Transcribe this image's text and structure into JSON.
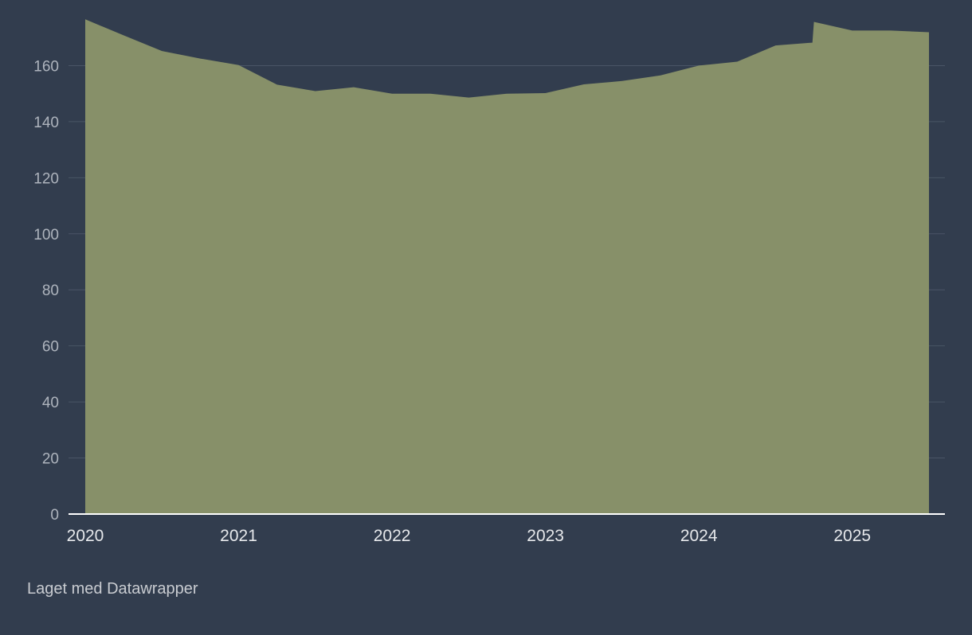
{
  "chart_data": {
    "type": "area",
    "title": "",
    "xlabel": "",
    "ylabel": "",
    "x_ticks": [
      "2020",
      "2021",
      "2022",
      "2023",
      "2024",
      "2025"
    ],
    "y_ticks": [
      0,
      20,
      40,
      60,
      80,
      100,
      120,
      140,
      160
    ],
    "xlim": [
      2020.0,
      2025.5
    ],
    "ylim": [
      0,
      180
    ],
    "grid": true,
    "legend": "none",
    "series": [
      {
        "color": "#879069",
        "points": [
          {
            "x": 2020.0,
            "y": 176.5
          },
          {
            "x": 2020.25,
            "y": 170.8
          },
          {
            "x": 2020.5,
            "y": 165.2
          },
          {
            "x": 2020.75,
            "y": 162.5
          },
          {
            "x": 2021.0,
            "y": 160.2
          },
          {
            "x": 2021.25,
            "y": 153.2
          },
          {
            "x": 2021.5,
            "y": 150.9
          },
          {
            "x": 2021.75,
            "y": 152.3
          },
          {
            "x": 2022.0,
            "y": 150.0
          },
          {
            "x": 2022.25,
            "y": 150.0
          },
          {
            "x": 2022.5,
            "y": 148.6
          },
          {
            "x": 2022.75,
            "y": 150.0
          },
          {
            "x": 2023.0,
            "y": 150.2
          },
          {
            "x": 2023.25,
            "y": 153.3
          },
          {
            "x": 2023.5,
            "y": 154.5
          },
          {
            "x": 2023.75,
            "y": 156.5
          },
          {
            "x": 2024.0,
            "y": 160.0
          },
          {
            "x": 2024.25,
            "y": 161.4
          },
          {
            "x": 2024.5,
            "y": 167.2
          },
          {
            "x": 2024.74,
            "y": 168.2
          },
          {
            "x": 2024.75,
            "y": 175.6
          },
          {
            "x": 2025.0,
            "y": 172.5
          },
          {
            "x": 2025.25,
            "y": 172.5
          },
          {
            "x": 2025.5,
            "y": 171.9
          }
        ]
      }
    ]
  },
  "footer": {
    "credit": "Laget med Datawrapper"
  }
}
